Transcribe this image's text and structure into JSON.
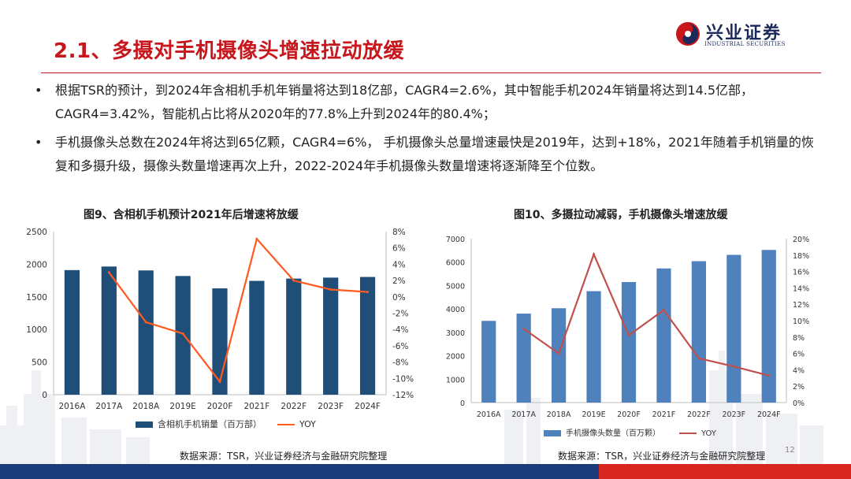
{
  "slide": {
    "title": "2.1、多摄对手机摄像头增速拉动放缓",
    "page_number": "12",
    "brand": {
      "name": "兴业证券",
      "subtitle": "INDUSTRIAL SECURITIES",
      "color_red": "#c8161d",
      "color_navy": "#1b2a5a"
    },
    "bullets": [
      {
        "symbol": "•",
        "text": "根据TSR的预计，到2024年含相机手机年销量将达到18亿部，CAGR4=2.6%，其中智能手机2024年销量将达到14.5亿部，CAGR4=3.42%，智能机占比将从2020年的77.8%上升到2024年的80.4%；"
      },
      {
        "symbol": "•",
        "text": "手机摄像头总数在2024年将达到65亿颗，CAGR4=6%， 手机摄像头总量增速最快是2019年，达到+18%，2021年随着手机销量的恢复和多摄升级，摄像头数量增速再次上升，2022-2024年手机摄像头数量增速将逐渐降至个位数。"
      }
    ]
  },
  "charts": [
    {
      "title": "图9、含相机手机预计2021年后增速将放缓",
      "source": "数据来源：TSR，兴业证券经济与金融研究院整理"
    },
    {
      "title": "图10、多摄拉动减弱，手机摄像头增速放缓",
      "source": "数据来源：TSR，兴业证券经济与金融研究院整理"
    }
  ],
  "chart_data": [
    {
      "type": "bar",
      "categories": [
        "2016A",
        "2017A",
        "2018A",
        "2019E",
        "2020F",
        "2021F",
        "2022F",
        "2023F",
        "2024F"
      ],
      "series": [
        {
          "name": "含相机手机销量（百万部）",
          "kind": "bar",
          "axis": "left",
          "color": "#1f4e79",
          "values": [
            1910,
            1965,
            1905,
            1820,
            1630,
            1745,
            1780,
            1795,
            1805
          ]
        },
        {
          "name": "YOY",
          "kind": "line",
          "axis": "right",
          "color": "#ff5a1f",
          "values": [
            null,
            3.0,
            -3.1,
            -4.5,
            -10.4,
            7.1,
            2.0,
            0.9,
            0.6
          ]
        }
      ],
      "ylim_left": [
        0,
        2500
      ],
      "yticks_left": [
        "0",
        "500",
        "1000",
        "1500",
        "2000",
        "2500"
      ],
      "ylim_right": [
        -12,
        8
      ],
      "yticks_right": [
        "-12%",
        "-10%",
        "-8%",
        "-6%",
        "-4%",
        "-2%",
        "0%",
        "2%",
        "4%",
        "6%",
        "8%"
      ],
      "grid": false,
      "legend": "bottom"
    },
    {
      "type": "bar",
      "categories": [
        "2016A",
        "2017A",
        "2018A",
        "2019E",
        "2020F",
        "2021F",
        "2022F",
        "2023F",
        "2024F"
      ],
      "series": [
        {
          "name": "手机摄像头数量（百万颗）",
          "kind": "bar",
          "axis": "left",
          "color": "#4f81bd",
          "values": [
            3490,
            3800,
            4030,
            4760,
            5150,
            5730,
            6040,
            6310,
            6520
          ]
        },
        {
          "name": "YOY",
          "kind": "line",
          "axis": "right",
          "color": "#c0504d",
          "values": [
            null,
            9.0,
            6.0,
            18.1,
            8.2,
            11.3,
            5.4,
            4.4,
            3.3
          ]
        }
      ],
      "ylim_left": [
        0,
        7000
      ],
      "yticks_left": [
        "0",
        "1000",
        "2000",
        "3000",
        "4000",
        "5000",
        "6000",
        "7000"
      ],
      "ylim_right": [
        0,
        20
      ],
      "yticks_right": [
        "0%",
        "2%",
        "4%",
        "6%",
        "8%",
        "10%",
        "12%",
        "14%",
        "16%",
        "18%",
        "20%"
      ],
      "grid": false,
      "legend": "bottom"
    }
  ]
}
